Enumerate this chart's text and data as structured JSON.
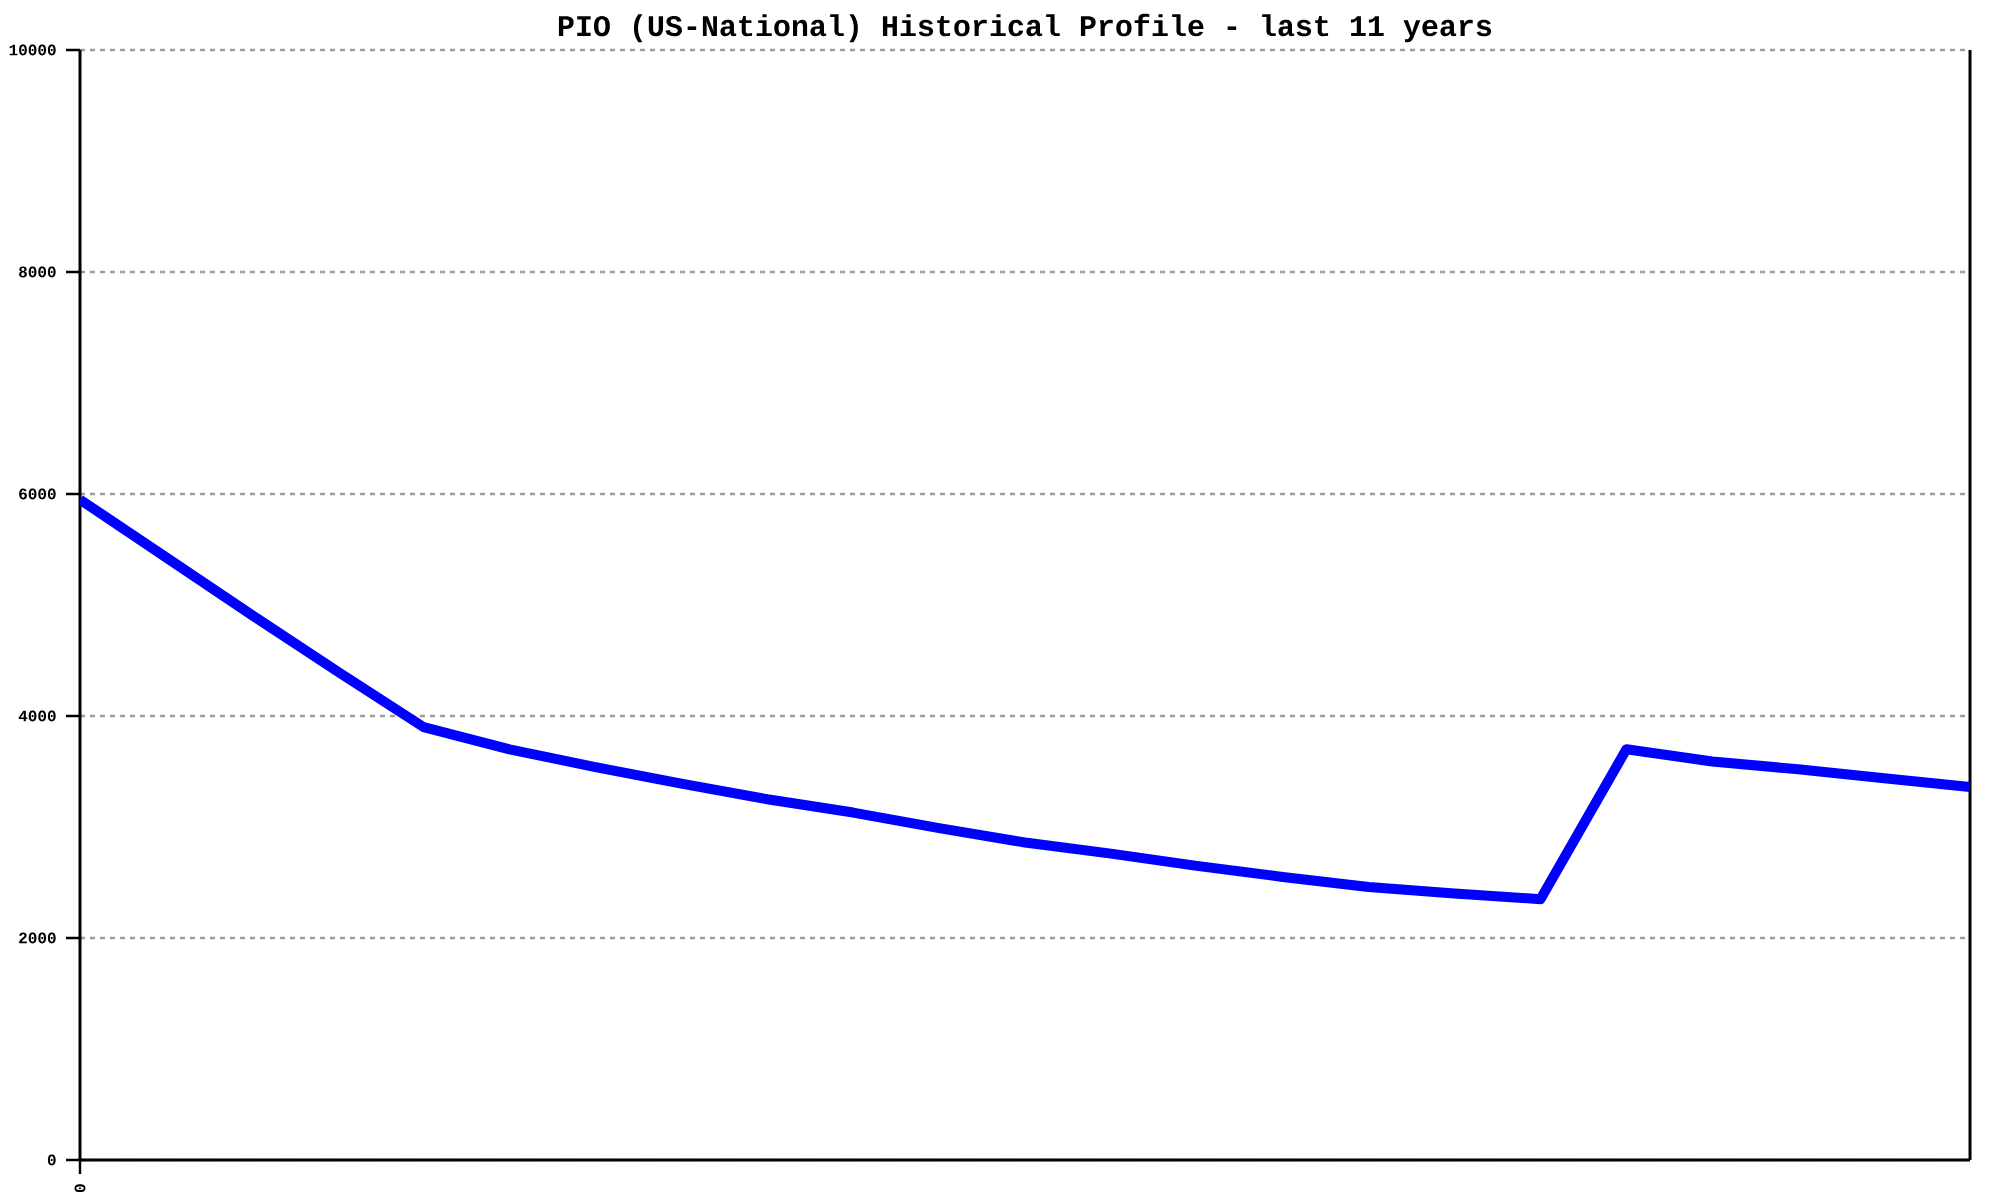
{
  "chart_data": {
    "type": "line",
    "title": "PIO (US-National) Historical Profile - last 11 years",
    "categories": [
      "0",
      null,
      null,
      null,
      null,
      null,
      null,
      null,
      null,
      null,
      null,
      null,
      null,
      null,
      null,
      null,
      null,
      null,
      null,
      null,
      null,
      null,
      null
    ],
    "values": [
      5950,
      5430,
      4910,
      4400,
      3900,
      3700,
      3540,
      3390,
      3250,
      3130,
      2990,
      2860,
      2760,
      2650,
      2550,
      2460,
      2400,
      2350,
      3700,
      3590,
      3520,
      3440,
      3360
    ],
    "color": "#0000ff",
    "ylim": [
      0,
      10000
    ],
    "yticks": [
      0,
      2000,
      4000,
      6000,
      8000,
      10000
    ],
    "grid": "y"
  }
}
